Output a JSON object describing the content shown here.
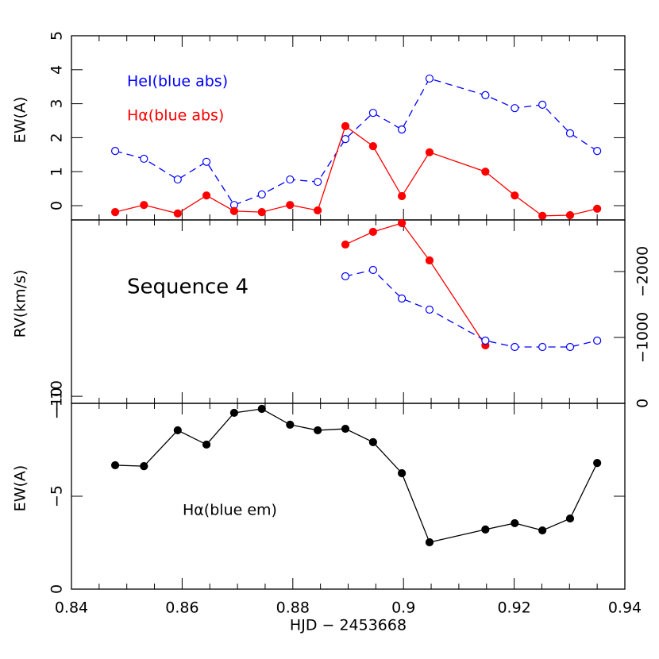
{
  "chart_data": [
    {
      "type": "line",
      "ylabel": "EW(A)",
      "x": [
        0.8479,
        0.8531,
        0.8592,
        0.8644,
        0.8694,
        0.8744,
        0.8795,
        0.8845,
        0.8895,
        0.8945,
        0.8997,
        0.9047,
        0.9148,
        0.9201,
        0.9251,
        0.9301,
        0.935
      ],
      "ylim": [
        -0.42,
        5
      ],
      "yticks": [
        0,
        1,
        2,
        3,
        4,
        5
      ],
      "series": [
        {
          "name": "HeI(blue abs)",
          "color": "#0000ff",
          "marker": "open",
          "dash": true,
          "values": [
            1.61,
            1.38,
            0.77,
            1.29,
            0.02,
            0.33,
            0.77,
            0.7,
            1.96,
            2.73,
            2.24,
            3.74,
            3.25,
            2.87,
            2.97,
            2.13,
            1.61
          ]
        },
        {
          "name": "Hα(blue abs)",
          "color": "#ff0000",
          "marker": "filled",
          "dash": false,
          "values": [
            -0.19,
            0.02,
            -0.23,
            0.3,
            -0.16,
            -0.19,
            0.02,
            -0.14,
            2.34,
            1.75,
            0.28,
            1.57,
            1.0,
            0.3,
            -0.3,
            -0.28,
            -0.09
          ]
        }
      ]
    },
    {
      "type": "line",
      "ylabel": "RV(km/s)",
      "annotation": "Sequence 4",
      "x": [
        0.8895,
        0.8945,
        0.8997,
        0.9047,
        0.9148,
        0.9201,
        0.9251,
        0.9301,
        0.935
      ],
      "ylim": [
        -10.4,
        0
      ],
      "yticks": [
        {
          "value": -10,
          "label": "−10"
        }
      ],
      "y2lim": [
        0,
        -2783
      ],
      "y2ticks": [
        {
          "value": 0,
          "label": "0"
        },
        {
          "value": -1000,
          "label": "−1000"
        },
        {
          "value": -2000,
          "label": "−2000"
        }
      ],
      "series": [
        {
          "color": "#ff0000",
          "marker": "filled",
          "dash": false,
          "axis": "y2",
          "values": [
            -2410,
            -2602,
            -2735,
            -2169,
            -880,
            null,
            null,
            null,
            null
          ]
        },
        {
          "color": "#0000ff",
          "marker": "open",
          "dash": true,
          "axis": "y2",
          "values": [
            -1928,
            -2024,
            -1590,
            -1422,
            -952,
            -855,
            -855,
            -855,
            -952
          ]
        }
      ]
    },
    {
      "type": "line",
      "ylabel": "EW(A)",
      "xlabel": "HJD − 2453668",
      "x": [
        0.8479,
        0.8531,
        0.8592,
        0.8644,
        0.8694,
        0.8744,
        0.8795,
        0.8845,
        0.8895,
        0.8945,
        0.8997,
        0.9047,
        0.9148,
        0.9201,
        0.9251,
        0.9301,
        0.935
      ],
      "xlim": [
        0.84,
        0.94
      ],
      "xticks": [
        0.84,
        0.86,
        0.88,
        0.9,
        0.92,
        0.94
      ],
      "ylim": [
        0,
        -10
      ],
      "yticks": [
        {
          "value": 0,
          "label": "0"
        },
        {
          "value": -5,
          "label": "−5"
        },
        {
          "value": -10,
          "label": "−10"
        }
      ],
      "series": [
        {
          "name": "Hα(blue em)",
          "color": "#000000",
          "marker": "filled",
          "dash": false,
          "values": [
            -6.67,
            -6.62,
            -8.55,
            -7.78,
            -9.49,
            -9.7,
            -8.85,
            -8.55,
            -8.63,
            -7.91,
            -6.24,
            -2.52,
            -3.21,
            -3.55,
            -3.16,
            -3.8,
            -6.79
          ]
        }
      ]
    }
  ]
}
